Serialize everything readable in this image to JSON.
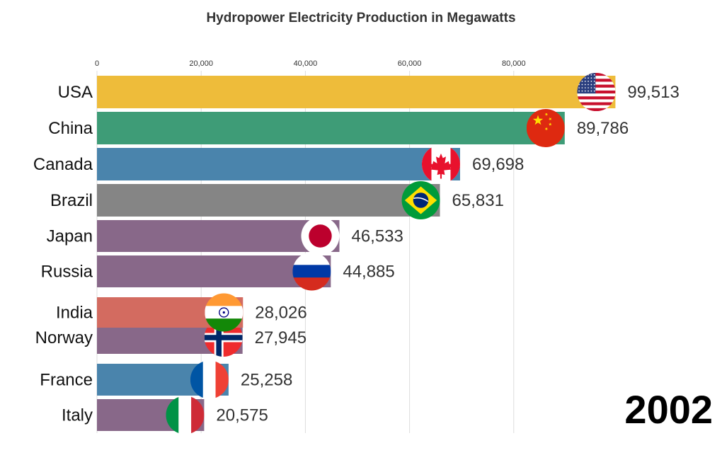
{
  "chart_data": {
    "type": "bar",
    "orientation": "horizontal",
    "title": "Hydropower Electricity Production in Megawatts",
    "year_label": "2002",
    "xlim": [
      0,
      100000
    ],
    "x_ticks": [
      0,
      20000,
      40000,
      60000,
      80000
    ],
    "x_tick_labels": [
      "0",
      "20,000",
      "40,000",
      "60,000",
      "80,000"
    ],
    "grid": true,
    "categories": [
      "USA",
      "China",
      "Canada",
      "Brazil",
      "Japan",
      "Russia",
      "India",
      "Norway",
      "France",
      "Italy"
    ],
    "values": [
      99513,
      89786,
      69698,
      65831,
      46533,
      44885,
      28026,
      27945,
      25258,
      20575
    ],
    "value_labels": [
      "99,513",
      "89,786",
      "69,698",
      "65,831",
      "46,533",
      "44,885",
      "28,026",
      "27,945",
      "25,258",
      "20,575"
    ],
    "colors": [
      "#eebc3a",
      "#3e9c77",
      "#4a84ac",
      "#858585",
      "#886889",
      "#886889",
      "#d36b60",
      "#886889",
      "#4a84ac",
      "#886889"
    ],
    "flag_icons": [
      "usa-flag-icon",
      "china-flag-icon",
      "canada-flag-icon",
      "brazil-flag-icon",
      "japan-flag-icon",
      "russia-flag-icon",
      "india-flag-icon",
      "norway-flag-icon",
      "france-flag-icon",
      "italy-flag-icon"
    ]
  }
}
